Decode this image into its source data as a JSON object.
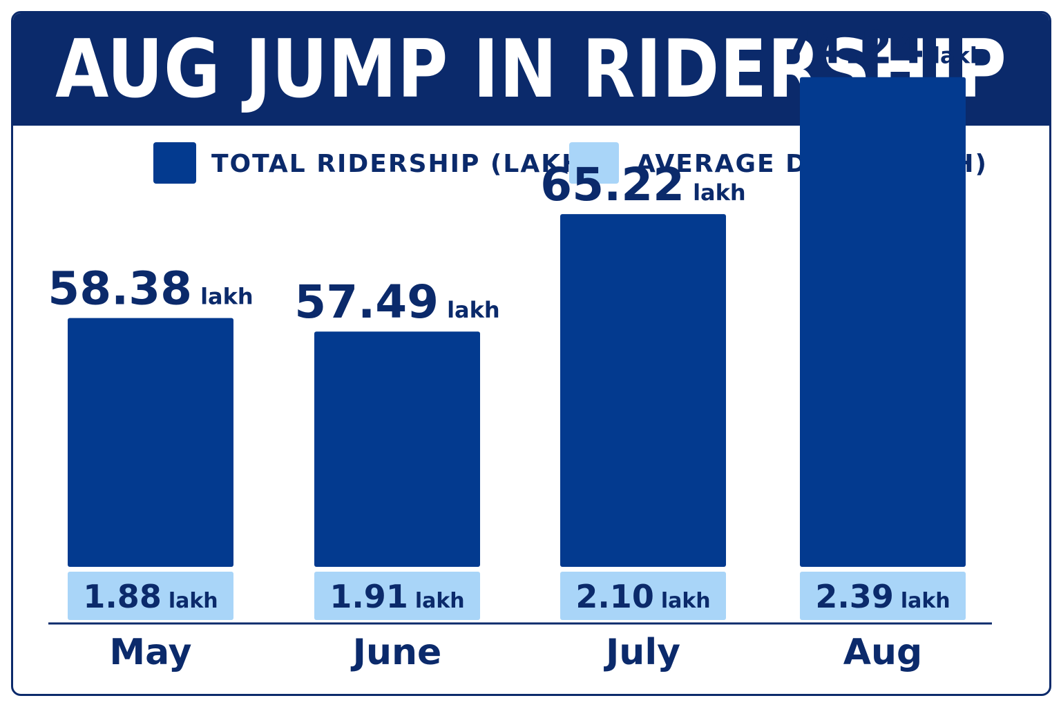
{
  "title": "AUG JUMP IN RIDERSHIP",
  "colors": {
    "banner": "#0b2a6b",
    "total_bar": "#033a8f",
    "daily_bar": "#a9d5f8",
    "text": "#0b2a6b"
  },
  "chart_data": {
    "type": "bar",
    "title": "AUG JUMP IN RIDERSHIP",
    "categories": [
      "May",
      "June",
      "July",
      "Aug"
    ],
    "series": [
      {
        "name": "TOTAL RIDERSHIP (LAKH)",
        "values": [
          58.38,
          57.49,
          65.22,
          74.24
        ]
      },
      {
        "name": "AVERAGE DAILY (LAKH)",
        "values": [
          1.88,
          1.91,
          2.1,
          2.39
        ]
      }
    ],
    "value_unit": "lakh",
    "legend_position": "top",
    "grid": false
  }
}
